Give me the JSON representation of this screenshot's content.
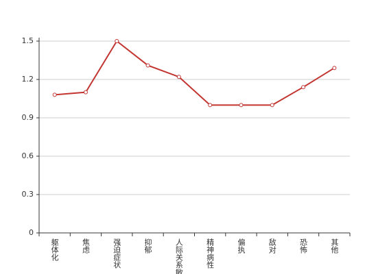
{
  "chart_data": {
    "type": "line",
    "categories": [
      "躯体化",
      "焦虑",
      "强迫症状",
      "抑郁",
      "人际关系敏感",
      "精神病性",
      "偏执",
      "敌对",
      "恐怖",
      "其他"
    ],
    "series": [
      {
        "color": "#c23531",
        "values": [
          1.08,
          1.1,
          1.5,
          1.31,
          1.22,
          1.0,
          1.0,
          1.0,
          1.14,
          1.29
        ]
      }
    ],
    "ylim": [
      0,
      1.5
    ],
    "yticks": [
      0,
      0.3,
      0.6,
      0.9,
      1.2,
      1.5
    ],
    "grid": true
  }
}
